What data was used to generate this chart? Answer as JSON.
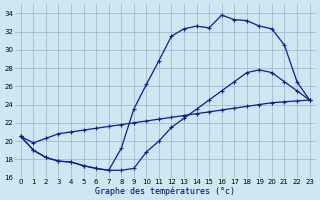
{
  "title": "Graphe des températures (°c)",
  "bg_color": "#cce8f0",
  "grid_color": "#aaaacc",
  "line_color": "#1616aa",
  "xlim": [
    -0.5,
    23.5
  ],
  "ylim": [
    16,
    35
  ],
  "yticks": [
    16,
    18,
    20,
    22,
    24,
    26,
    28,
    30,
    32,
    34
  ],
  "xticks": [
    0,
    1,
    2,
    3,
    4,
    5,
    6,
    7,
    8,
    9,
    10,
    11,
    12,
    13,
    14,
    15,
    16,
    17,
    18,
    19,
    20,
    21,
    22,
    23
  ],
  "curve1_x": [
    0,
    1,
    2,
    3,
    4,
    5,
    6,
    7,
    8,
    9,
    10,
    11,
    12,
    13,
    14,
    15,
    16,
    17,
    18,
    19,
    20,
    21,
    22,
    23
  ],
  "curve1_y": [
    20.5,
    19.0,
    18.2,
    17.8,
    17.7,
    17.3,
    17.0,
    16.8,
    19.2,
    23.5,
    26.2,
    28.8,
    31.5,
    32.3,
    32.6,
    32.4,
    33.8,
    33.3,
    33.2,
    32.6,
    32.3,
    30.5,
    26.5,
    24.5
  ],
  "curve2_x": [
    0,
    1,
    2,
    3,
    4,
    5,
    6,
    7,
    8,
    9,
    10,
    11,
    12,
    13,
    14,
    15,
    16,
    17,
    18,
    19,
    20,
    21,
    22,
    23
  ],
  "curve2_y": [
    20.5,
    19.8,
    20.3,
    20.8,
    21.0,
    21.2,
    21.4,
    21.6,
    21.8,
    22.0,
    22.2,
    22.4,
    22.6,
    22.8,
    23.0,
    23.2,
    23.4,
    23.6,
    23.8,
    24.0,
    24.2,
    24.3,
    24.4,
    24.5
  ],
  "curve3_x": [
    0,
    1,
    2,
    3,
    4,
    5,
    6,
    7,
    8,
    9,
    10,
    11,
    12,
    13,
    14,
    15,
    16,
    17,
    18,
    19,
    20,
    21,
    22,
    23
  ],
  "curve3_y": [
    20.5,
    19.0,
    18.2,
    17.8,
    17.7,
    17.3,
    17.0,
    16.8,
    16.8,
    17.0,
    18.8,
    20.0,
    21.5,
    22.5,
    23.5,
    24.5,
    25.5,
    26.5,
    27.5,
    27.8,
    27.5,
    26.5,
    25.5,
    24.5
  ]
}
